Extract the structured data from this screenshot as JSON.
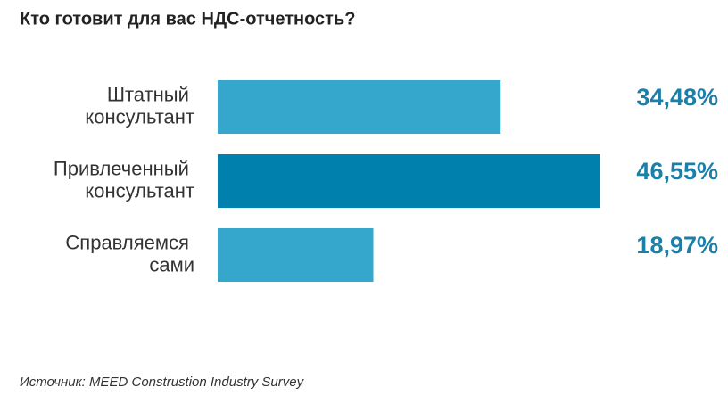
{
  "chart_data": {
    "type": "barh",
    "title": "Кто готовит для вас НДС-отчетность?",
    "categories": [
      "Штатный консультант",
      "Привлеченный консультант",
      "Справляемся сами"
    ],
    "values": [
      34.48,
      46.55,
      18.97
    ],
    "value_labels": [
      "34,48%",
      "46,55%",
      "18,97%"
    ],
    "colors": [
      "#35a6cc",
      "#0080ad",
      "#35a6cc"
    ],
    "xlim": [
      0,
      50
    ],
    "source": "Источник: MEED Construstion Industry Survey"
  }
}
